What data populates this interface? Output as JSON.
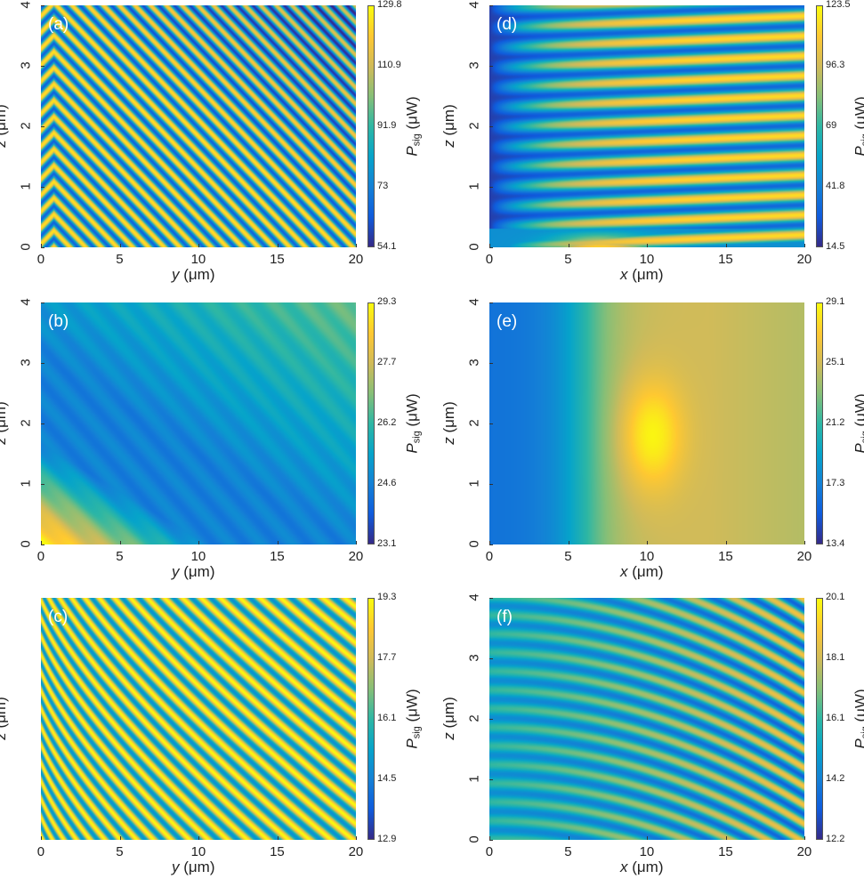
{
  "chart_data": [
    {
      "type": "heatmap",
      "panel_label": "(a)",
      "xlabel_var": "y",
      "xlabel_unit": " (μm)",
      "ylabel_var": "z",
      "ylabel_unit": " (μm)",
      "xlim": [
        0,
        20
      ],
      "ylim": [
        0,
        4
      ],
      "xticks": [
        "0",
        "5",
        "10",
        "15",
        "20"
      ],
      "yticks": [
        "0",
        "1",
        "2",
        "3",
        "4"
      ],
      "colorbar": {
        "label_var": "P",
        "label_sub": "sig",
        "label_unit": " (μW)",
        "range": [
          54.1,
          129.8
        ],
        "ticks": [
          "54.1",
          "73",
          "91.9",
          "110.9",
          "129.8"
        ]
      },
      "pattern": "diagonal fringes"
    },
    {
      "type": "heatmap",
      "panel_label": "(b)",
      "xlabel_var": "y",
      "xlabel_unit": " (μm)",
      "ylabel_var": "z",
      "ylabel_unit": " (μm)",
      "xlim": [
        0,
        20
      ],
      "ylim": [
        0,
        4
      ],
      "xticks": [
        "0",
        "5",
        "10",
        "15",
        "20"
      ],
      "yticks": [
        "0",
        "1",
        "2",
        "3",
        "4"
      ],
      "colorbar": {
        "label_var": "P",
        "label_sub": "sig",
        "label_unit": " (μW)",
        "range": [
          23.1,
          29.3
        ],
        "ticks": [
          "23.1",
          "24.6",
          "26.2",
          "27.7",
          "29.3"
        ]
      },
      "pattern": "smooth diagonal gradient"
    },
    {
      "type": "heatmap",
      "panel_label": "(c)",
      "xlabel_var": "y",
      "xlabel_unit": " (μm)",
      "ylabel_var": "z",
      "ylabel_unit": " (μm)",
      "xlim": [
        0,
        20
      ],
      "ylim": [
        0,
        4
      ],
      "xticks": [
        "0",
        "5",
        "10",
        "15",
        "20"
      ],
      "yticks": [],
      "colorbar": {
        "label_var": "P",
        "label_sub": "sig",
        "label_unit": " (μW)",
        "range": [
          12.9,
          19.3
        ],
        "ticks": [
          "12.9",
          "14.5",
          "16.1",
          "17.7",
          "19.3"
        ]
      },
      "pattern": "curved diagonal fringes"
    },
    {
      "type": "heatmap",
      "panel_label": "(d)",
      "xlabel_var": "x",
      "xlabel_unit": " (μm)",
      "ylabel_var": "z",
      "ylabel_unit": " (μm)",
      "xlim": [
        0,
        20
      ],
      "ylim": [
        0,
        4
      ],
      "xticks": [
        "0",
        "5",
        "10",
        "15",
        "20"
      ],
      "yticks": [
        "0",
        "1",
        "2",
        "3",
        "4"
      ],
      "colorbar": {
        "label_var": "P",
        "label_sub": "sig",
        "label_unit": " (μW)",
        "range": [
          14.5,
          123.5
        ],
        "ticks": [
          "14.5",
          "41.8",
          "69",
          "96.3",
          "123.5"
        ]
      },
      "pattern": "horizontal fringes growing with x"
    },
    {
      "type": "heatmap",
      "panel_label": "(e)",
      "xlabel_var": "x",
      "xlabel_unit": " (μm)",
      "ylabel_var": "z",
      "ylabel_unit": " (μm)",
      "xlim": [
        0,
        20
      ],
      "ylim": [
        0,
        4
      ],
      "xticks": [
        "0",
        "5",
        "10",
        "15",
        "20"
      ],
      "yticks": [
        "0",
        "1",
        "2",
        "3",
        "4"
      ],
      "colorbar": {
        "label_var": "P",
        "label_sub": "sig",
        "label_unit": " (μW)",
        "range": [
          13.4,
          29.1
        ],
        "ticks": [
          "13.4",
          "17.3",
          "21.2",
          "25.1",
          "29.1"
        ]
      },
      "pattern": "smooth gradient in x, peak near x=10"
    },
    {
      "type": "heatmap",
      "panel_label": "(f)",
      "xlabel_var": "x",
      "xlabel_unit": " (μm)",
      "ylabel_var": "z",
      "ylabel_unit": " (μm)",
      "xlim": [
        0,
        20
      ],
      "ylim": [
        0,
        4
      ],
      "xticks": [
        "0",
        "5",
        "10",
        "15",
        "20"
      ],
      "yticks": [
        "0",
        "1",
        "2",
        "3",
        "4"
      ],
      "colorbar": {
        "label_var": "P",
        "label_sub": "sig",
        "label_unit": " (μW)",
        "range": [
          12.2,
          20.1
        ],
        "ticks": [
          "12.2",
          "14.2",
          "16.1",
          "18.1",
          "20.1"
        ]
      },
      "pattern": "curved horizontal fringes"
    }
  ]
}
